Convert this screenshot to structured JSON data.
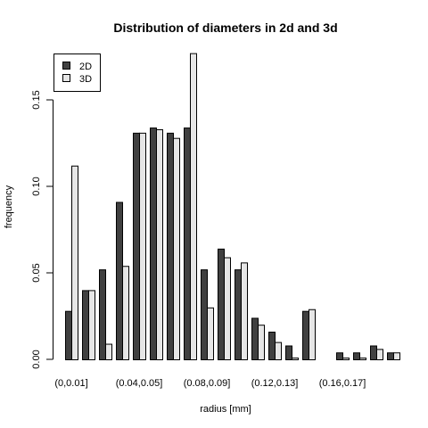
{
  "chart_data": {
    "type": "bar",
    "title": "Distribution of diameters in 2d and 3d",
    "xlabel": "radius [mm]",
    "ylabel": "frequency",
    "ylim": [
      0,
      0.18
    ],
    "yticks": [
      0.0,
      0.05,
      0.1,
      0.15
    ],
    "ytick_labels": [
      "0.00",
      "0.05",
      "0.10",
      "0.15"
    ],
    "categories": [
      "(0,0.01]",
      "(0.01,0.02]",
      "(0.02,0.03]",
      "(0.03,0.04]",
      "(0.04,0.05]",
      "(0.05,0.06]",
      "(0.06,0.07]",
      "(0.07,0.08]",
      "(0.08,0.09]",
      "(0.09,0.1]",
      "(0.1,0.11]",
      "(0.11,0.12]",
      "(0.12,0.13]",
      "(0.13,0.14]",
      "(0.14,0.15]",
      "(0.15,0.16]",
      "(0.16,0.17]",
      "(0.17,0.18]",
      "(0.18,0.19]",
      "(0.19,0.2]"
    ],
    "visible_category_labels": [
      {
        "index": 0,
        "text": "(0,0.01]"
      },
      {
        "index": 4,
        "text": "(0.04,0.05]"
      },
      {
        "index": 8,
        "text": "(0.08,0.09]"
      },
      {
        "index": 12,
        "text": "(0.12,0.13]"
      },
      {
        "index": 16,
        "text": "(0.16,0.17]"
      }
    ],
    "series": [
      {
        "name": "2D",
        "color": "#404040",
        "values": [
          0.028,
          0.04,
          0.052,
          0.091,
          0.131,
          0.134,
          0.131,
          0.134,
          0.052,
          0.064,
          0.052,
          0.024,
          0.016,
          0.008,
          0.028,
          0.0,
          0.004,
          0.004,
          0.008,
          0.004
        ]
      },
      {
        "name": "3D",
        "color": "#e6e6e6",
        "values": [
          0.112,
          0.04,
          0.009,
          0.054,
          0.131,
          0.133,
          0.128,
          0.177,
          0.03,
          0.059,
          0.056,
          0.02,
          0.01,
          0.001,
          0.029,
          0.0,
          0.001,
          0.001,
          0.006,
          0.004
        ]
      }
    ],
    "legend": {
      "position": "top-left",
      "entries": [
        "2D",
        "3D"
      ]
    },
    "grid": false
  }
}
